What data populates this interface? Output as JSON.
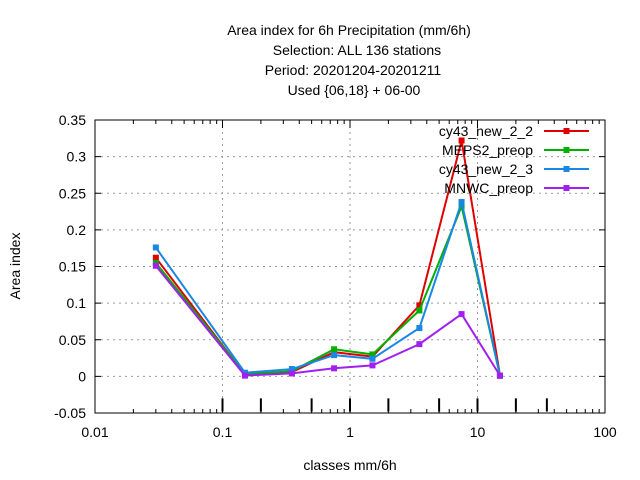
{
  "chart_data": {
    "type": "line",
    "title_lines": [
      "Area index  for 6h Precipitation (mm/6h)",
      "Selection: ALL    136 stations",
      "Period: 20201204-20201211",
      "Used {06,18} + 06-00"
    ],
    "xlabel": "classes mm/6h",
    "ylabel": "Area index",
    "x_scale": "log",
    "xlim": [
      0.01,
      100
    ],
    "ylim": [
      -0.05,
      0.35
    ],
    "x_ticks": [
      0.01,
      0.1,
      1,
      10,
      100
    ],
    "x_tick_labels": [
      "0.01",
      "0.1",
      "1",
      "10",
      "100"
    ],
    "y_ticks": [
      -0.05,
      0,
      0.05,
      0.1,
      0.15,
      0.2,
      0.25,
      0.3,
      0.35
    ],
    "y_tick_labels": [
      "-0.05",
      "0",
      "0.05",
      "0.1",
      "0.15",
      "0.2",
      "0.25",
      "0.3",
      "0.35"
    ],
    "class_markers": [
      0.1,
      0.2,
      0.5,
      1,
      2,
      5,
      10,
      20,
      35
    ],
    "grid": true,
    "legend_position": "top-right",
    "x": [
      0.03,
      0.15,
      0.35,
      0.75,
      1.5,
      3.5,
      7.5,
      15
    ],
    "series": [
      {
        "name": "cy43_new_2_2",
        "color": "#e00000",
        "values": [
          0.162,
          0.002,
          0.006,
          0.033,
          0.027,
          0.097,
          0.322,
          0.001
        ]
      },
      {
        "name": "MEPS2_preop",
        "color": "#00b000",
        "values": [
          0.155,
          0.003,
          0.007,
          0.037,
          0.03,
          0.09,
          0.232,
          0.001
        ]
      },
      {
        "name": "cy43_new_2_3",
        "color": "#1a87e6",
        "values": [
          0.176,
          0.005,
          0.01,
          0.029,
          0.024,
          0.066,
          0.238,
          0.001
        ]
      },
      {
        "name": "MNWC_preop",
        "color": "#a020f0",
        "values": [
          0.151,
          0.001,
          0.004,
          0.011,
          0.015,
          0.044,
          0.085,
          0.001
        ]
      }
    ]
  }
}
